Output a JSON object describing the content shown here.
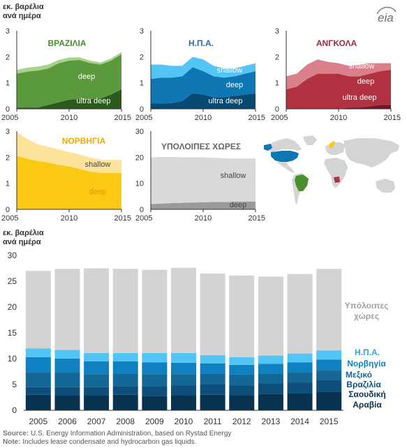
{
  "logo_text": "eia",
  "unit_label_line1": "εκ. βαρέλια",
  "unit_label_line2": "ανά ημέρα",
  "footer": {
    "source_label": "Source:",
    "source_text": "U.S. Energy Information Administration, based on Rystad Energy",
    "note_label": "Note:",
    "note_text": "Includes lease condensate and hydrocarbon gas liquids."
  },
  "colors": {
    "brazil_shallow": "#a6d28d",
    "brazil_deep": "#5a9a3c",
    "brazil_ultra": "#2b5a1c",
    "usa_shallow": "#53c4f3",
    "usa_deep": "#0f76b4",
    "usa_ultra": "#064a73",
    "angola_shallow": "#d9808b",
    "angola_deep": "#b0313f",
    "angola_ultra": "#6f1824",
    "norway_shallow": "#fde39a",
    "norway_deep": "#fbc913",
    "other_shallow": "#d9d9d9",
    "other_deep": "#9a9a9a",
    "world_other": "#d4d4d4",
    "world_usa": "#0f76b4",
    "world_brazil": "#4a8f2e",
    "world_angola": "#b0313f",
    "world_norway": "#fbc913",
    "bar_other": "#d3d3d3",
    "bar_usa": "#53c4f3",
    "bar_norway": "#0f80c0",
    "bar_mexico": "#146896",
    "bar_brazil": "#0d4f7a",
    "bar_saudi": "#073350"
  },
  "chart_data": [
    {
      "type": "area",
      "title": "ΒΡΑΖΙΛΙΑ",
      "x": [
        2005,
        2006,
        2007,
        2008,
        2009,
        2010,
        2011,
        2012,
        2013,
        2014,
        2015
      ],
      "xticks": [
        2005,
        2010,
        2015
      ],
      "yticks": [
        0,
        1,
        2,
        3
      ],
      "ylim": [
        0,
        3
      ],
      "series": [
        {
          "name": "ultra deep",
          "values": [
            0.05,
            0.05,
            0.05,
            0.15,
            0.25,
            0.35,
            0.38,
            0.38,
            0.4,
            0.55,
            0.75
          ]
        },
        {
          "name": "deep",
          "values": [
            1.3,
            1.38,
            1.42,
            1.4,
            1.5,
            1.5,
            1.5,
            1.38,
            1.3,
            1.3,
            1.35
          ]
        },
        {
          "name": "shallow",
          "values": [
            0.15,
            0.15,
            0.15,
            0.15,
            0.13,
            0.12,
            0.1,
            0.09,
            0.08,
            0.08,
            0.08
          ]
        }
      ]
    },
    {
      "type": "area",
      "title": "Η.Π.Α.",
      "x": [
        2005,
        2006,
        2007,
        2008,
        2009,
        2010,
        2011,
        2012,
        2013,
        2014,
        2015
      ],
      "xticks": [
        2005,
        2010,
        2015
      ],
      "yticks": [
        0,
        1,
        2,
        3
      ],
      "ylim": [
        0,
        3
      ],
      "series": [
        {
          "name": "ultra deep",
          "values": [
            0.2,
            0.2,
            0.22,
            0.3,
            0.6,
            0.55,
            0.45,
            0.45,
            0.5,
            0.55,
            0.6
          ]
        },
        {
          "name": "deep",
          "values": [
            0.95,
            1.0,
            0.98,
            0.95,
            1.0,
            0.9,
            0.8,
            0.75,
            0.75,
            0.8,
            0.85
          ]
        },
        {
          "name": "shallow",
          "values": [
            0.55,
            0.5,
            0.45,
            0.4,
            0.4,
            0.45,
            0.4,
            0.35,
            0.3,
            0.3,
            0.3
          ]
        }
      ]
    },
    {
      "type": "area",
      "title": "ΑΝΓΚΟΛΑ",
      "x": [
        2005,
        2006,
        2007,
        2008,
        2009,
        2010,
        2011,
        2012,
        2013,
        2014,
        2015
      ],
      "xticks": [
        2005,
        2010,
        2015
      ],
      "yticks": [
        0,
        1,
        2,
        3
      ],
      "ylim": [
        0,
        3
      ],
      "series": [
        {
          "name": "ultra deep",
          "values": [
            0.0,
            0.0,
            0.0,
            0.0,
            0.0,
            0.0,
            0.05,
            0.05,
            0.1,
            0.15,
            0.15
          ]
        },
        {
          "name": "deep",
          "values": [
            0.75,
            0.85,
            1.15,
            1.35,
            1.35,
            1.35,
            1.2,
            1.2,
            1.25,
            1.3,
            1.35
          ]
        },
        {
          "name": "shallow",
          "values": [
            0.5,
            0.5,
            0.55,
            0.55,
            0.45,
            0.4,
            0.4,
            0.45,
            0.4,
            0.3,
            0.25
          ]
        }
      ]
    },
    {
      "type": "area",
      "title": "ΝΟΡΒΗΓΙΑ",
      "x": [
        2005,
        2006,
        2007,
        2008,
        2009,
        2010,
        2011,
        2012,
        2013,
        2014,
        2015
      ],
      "xticks": [
        2005,
        2010,
        2015
      ],
      "yticks": [
        0,
        1,
        2,
        3
      ],
      "ylim": [
        0,
        3
      ],
      "series": [
        {
          "name": "deep",
          "values": [
            2.05,
            1.95,
            1.85,
            1.8,
            1.7,
            1.65,
            1.55,
            1.45,
            1.4,
            1.4,
            1.4
          ]
        },
        {
          "name": "shallow",
          "values": [
            0.9,
            0.75,
            0.65,
            0.6,
            0.6,
            0.55,
            0.55,
            0.55,
            0.5,
            0.5,
            0.5
          ]
        }
      ]
    },
    {
      "type": "area",
      "title": "ΥΠΟΛΟΙΠΕΣ ΧΩΡΕΣ",
      "x": [
        2005,
        2006,
        2007,
        2008,
        2009,
        2010,
        2011,
        2012,
        2013,
        2014,
        2015
      ],
      "xticks": [
        2005,
        2010,
        2015
      ],
      "yticks": [
        0,
        10,
        20,
        30
      ],
      "ylim": [
        0,
        30
      ],
      "series": [
        {
          "name": "deep",
          "values": [
            2.0,
            2.2,
            2.4,
            2.5,
            2.6,
            2.7,
            2.8,
            2.8,
            2.9,
            3.0,
            3.0
          ]
        },
        {
          "name": "shallow",
          "values": [
            18.0,
            17.9,
            17.7,
            17.5,
            17.4,
            17.3,
            17.0,
            16.8,
            16.6,
            16.5,
            16.5
          ]
        }
      ]
    },
    {
      "type": "bar",
      "stacked": true,
      "categories": [
        "2005",
        "2006",
        "2007",
        "2008",
        "2009",
        "2010",
        "2011",
        "2012",
        "2013",
        "2014",
        "2015"
      ],
      "yticks": [
        0,
        5,
        10,
        15,
        20,
        25,
        30
      ],
      "ylim": [
        0,
        30
      ],
      "series": [
        {
          "name": "Σαουδική Αραβία",
          "values": [
            3.0,
            2.9,
            2.9,
            3.0,
            2.8,
            2.9,
            3.0,
            2.9,
            3.2,
            3.3,
            3.6
          ]
        },
        {
          "name": "Βραζιλία",
          "values": [
            1.5,
            1.6,
            1.6,
            1.6,
            1.8,
            1.9,
            2.0,
            1.9,
            2.0,
            2.1,
            2.3
          ]
        },
        {
          "name": "Μεξικό",
          "values": [
            2.8,
            2.8,
            2.5,
            2.5,
            2.4,
            2.2,
            2.1,
            2.1,
            1.9,
            1.9,
            1.9
          ]
        },
        {
          "name": "Νορβηγία",
          "values": [
            3.0,
            2.7,
            2.5,
            2.4,
            2.3,
            2.2,
            2.0,
            1.9,
            1.9,
            2.0,
            2.0
          ]
        },
        {
          "name": "Η.Π.Α.",
          "values": [
            1.7,
            1.7,
            1.6,
            1.6,
            1.8,
            1.9,
            1.6,
            1.5,
            1.6,
            1.7,
            1.8
          ]
        },
        {
          "name": "Υπόλοιπες χώρες",
          "values": [
            15.0,
            15.7,
            16.4,
            16.3,
            16.1,
            16.5,
            15.8,
            15.8,
            15.3,
            15.4,
            15.8
          ]
        }
      ]
    }
  ]
}
